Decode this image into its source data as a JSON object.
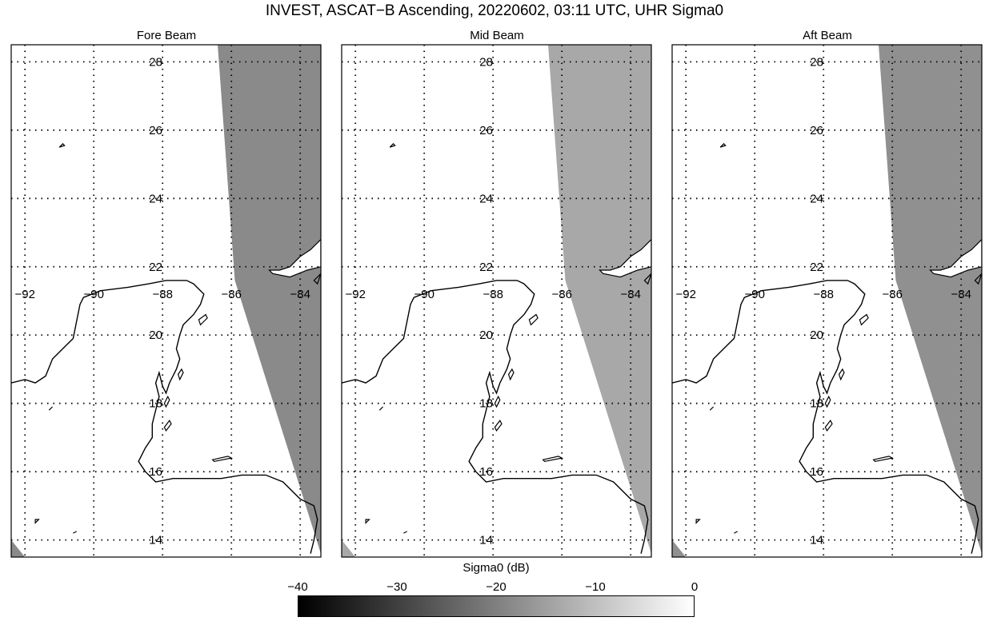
{
  "title": "INVEST, ASCAT−B Ascending, 20220602, 03:11 UTC, UHR Sigma0",
  "panels": [
    {
      "title": "Fore Beam",
      "swath_gray": "#8a8a8a"
    },
    {
      "title": "Mid Beam",
      "swath_gray": "#a8a8a8"
    },
    {
      "title": "Aft Beam",
      "swath_gray": "#909090"
    }
  ],
  "map": {
    "lon_range": [
      -92.4,
      -83.4
    ],
    "lat_range": [
      13.5,
      28.5
    ],
    "lon_ticks": [
      -92,
      -90,
      -88,
      -86,
      -84
    ],
    "lat_ticks": [
      14,
      16,
      18,
      20,
      22,
      24,
      26,
      28
    ],
    "lon_tick_labels": [
      "−92",
      "−90",
      "−88",
      "−86",
      "−84"
    ],
    "lat_tick_labels": [
      "14",
      "16",
      "18",
      "20",
      "22",
      "24",
      "26",
      "28"
    ],
    "label_lat": 21.2,
    "label_lon": -88.2,
    "coast_color": "#000000"
  },
  "colorbar": {
    "label": "Sigma0 (dB)",
    "min": -40,
    "max": 0,
    "ticks": [
      -40,
      -30,
      -20,
      -10,
      0
    ],
    "tick_labels": [
      "−40",
      "−30",
      "−20",
      "−10",
      "0"
    ],
    "color_low": "#000000",
    "color_high": "#ffffff"
  }
}
